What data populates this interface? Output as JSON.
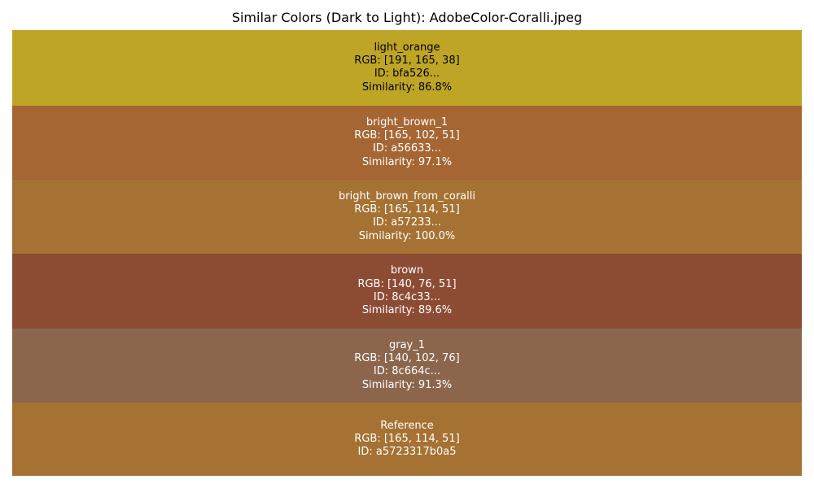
{
  "chart_data": {
    "type": "table",
    "title": "Similar Colors (Dark to Light): AdobeColor-Coralli.jpeg",
    "swatches": [
      {
        "name": "light_orange",
        "rgb_text": "RGB: [191, 165, 38]",
        "id_text": "ID: bfa526...",
        "similarity_text": "Similarity: 86.8%",
        "rgb": [
          191,
          165,
          38
        ],
        "similarity": 86.8,
        "color": "#bfa526",
        "text_color": "#000000"
      },
      {
        "name": "bright_brown_1",
        "rgb_text": "RGB: [165, 102, 51]",
        "id_text": "ID: a56633...",
        "similarity_text": "Similarity: 97.1%",
        "rgb": [
          165,
          102,
          51
        ],
        "similarity": 97.1,
        "color": "#a56633",
        "text_color": "#ffffff"
      },
      {
        "name": "bright_brown_from_coralli",
        "rgb_text": "RGB: [165, 114, 51]",
        "id_text": "ID: a57233...",
        "similarity_text": "Similarity: 100.0%",
        "rgb": [
          165,
          114,
          51
        ],
        "similarity": 100.0,
        "color": "#a57233",
        "text_color": "#ffffff"
      },
      {
        "name": "brown",
        "rgb_text": "RGB: [140, 76, 51]",
        "id_text": "ID: 8c4c33...",
        "similarity_text": "Similarity: 89.6%",
        "rgb": [
          140,
          76,
          51
        ],
        "similarity": 89.6,
        "color": "#8c4c33",
        "text_color": "#ffffff"
      },
      {
        "name": "gray_1",
        "rgb_text": "RGB: [140, 102, 76]",
        "id_text": "ID: 8c664c...",
        "similarity_text": "Similarity: 91.3%",
        "rgb": [
          140,
          102,
          76
        ],
        "similarity": 91.3,
        "color": "#8c664c",
        "text_color": "#ffffff"
      },
      {
        "name": "Reference",
        "rgb_text": "RGB: [165, 114, 51]",
        "id_text": "ID: a5723317b0a5",
        "similarity_text": "",
        "rgb": [
          165,
          114,
          51
        ],
        "color": "#a57233",
        "text_color": "#ffffff"
      }
    ]
  }
}
